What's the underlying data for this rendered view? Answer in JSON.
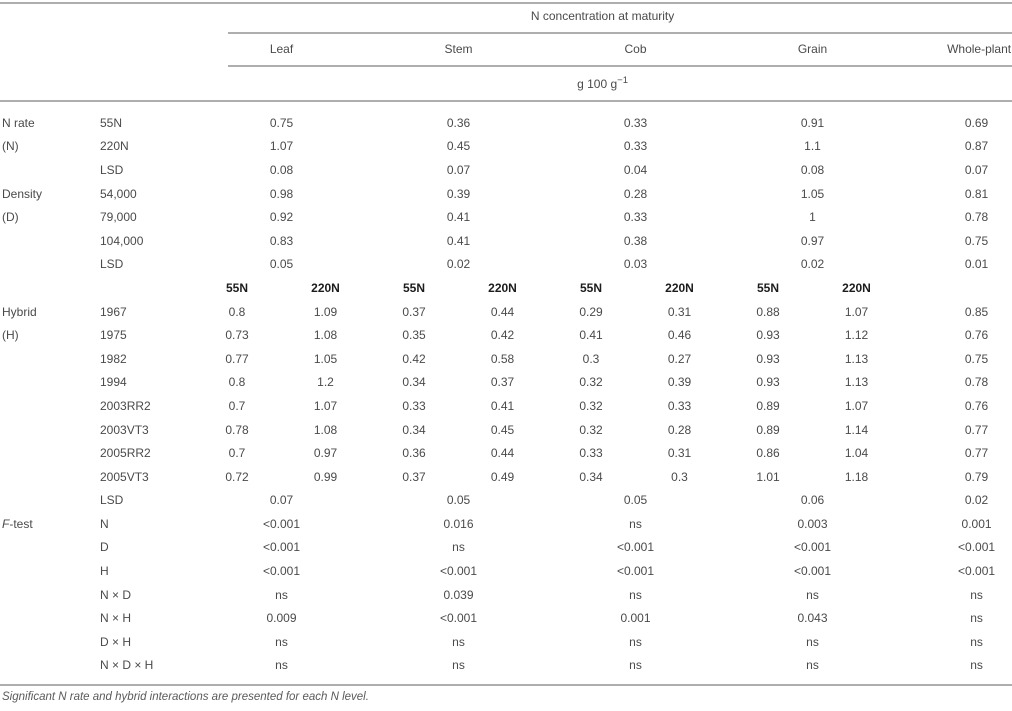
{
  "table": {
    "title": "N concentration at maturity",
    "columns": [
      "Leaf",
      "Stem",
      "Cob",
      "Grain",
      "Whole-plant"
    ],
    "unit_base": "g 100 g",
    "unit_exp": "−1",
    "nlevel_subheader": [
      "55N",
      "220N",
      "55N",
      "220N",
      "55N",
      "220N",
      "55N",
      "220N"
    ],
    "rows": [
      {
        "group": "N rate",
        "level": "55N",
        "mode": "span",
        "values": [
          "0.75",
          "0.36",
          "0.33",
          "0.91",
          "0.69"
        ]
      },
      {
        "group": "(N)",
        "level": "220N",
        "mode": "span",
        "values": [
          "1.07",
          "0.45",
          "0.33",
          "1.1",
          "0.87"
        ]
      },
      {
        "group": "",
        "level": "LSD",
        "mode": "span",
        "values": [
          "0.08",
          "0.07",
          "0.04",
          "0.08",
          "0.07"
        ]
      },
      {
        "group": "Density",
        "level": "54,000",
        "mode": "span",
        "values": [
          "0.98",
          "0.39",
          "0.28",
          "1.05",
          "0.81"
        ]
      },
      {
        "group": "(D)",
        "level": "79,000",
        "mode": "span",
        "values": [
          "0.92",
          "0.41",
          "0.33",
          "1",
          "0.78"
        ]
      },
      {
        "group": "",
        "level": "104,000",
        "mode": "span",
        "values": [
          "0.83",
          "0.41",
          "0.38",
          "0.97",
          "0.75"
        ]
      },
      {
        "group": "",
        "level": "LSD",
        "mode": "span",
        "values": [
          "0.05",
          "0.02",
          "0.03",
          "0.02",
          "0.01"
        ]
      },
      {
        "mode": "subheader"
      },
      {
        "group": "Hybrid",
        "level": "1967",
        "mode": "split",
        "values": [
          "0.8",
          "1.09",
          "0.37",
          "0.44",
          "0.29",
          "0.31",
          "0.88",
          "1.07",
          "0.85"
        ]
      },
      {
        "group": "(H)",
        "level": "1975",
        "mode": "split",
        "values": [
          "0.73",
          "1.08",
          "0.35",
          "0.42",
          "0.41",
          "0.46",
          "0.93",
          "1.12",
          "0.76"
        ]
      },
      {
        "group": "",
        "level": "1982",
        "mode": "split",
        "values": [
          "0.77",
          "1.05",
          "0.42",
          "0.58",
          "0.3",
          "0.27",
          "0.93",
          "1.13",
          "0.75"
        ]
      },
      {
        "group": "",
        "level": "1994",
        "mode": "split",
        "values": [
          "0.8",
          "1.2",
          "0.34",
          "0.37",
          "0.32",
          "0.39",
          "0.93",
          "1.13",
          "0.78"
        ]
      },
      {
        "group": "",
        "level": "2003RR2",
        "mode": "split",
        "values": [
          "0.7",
          "1.07",
          "0.33",
          "0.41",
          "0.32",
          "0.33",
          "0.89",
          "1.07",
          "0.76"
        ]
      },
      {
        "group": "",
        "level": "2003VT3",
        "mode": "split",
        "values": [
          "0.78",
          "1.08",
          "0.34",
          "0.45",
          "0.32",
          "0.28",
          "0.89",
          "1.14",
          "0.77"
        ]
      },
      {
        "group": "",
        "level": "2005RR2",
        "mode": "split",
        "values": [
          "0.7",
          "0.97",
          "0.36",
          "0.44",
          "0.33",
          "0.31",
          "0.86",
          "1.04",
          "0.77"
        ]
      },
      {
        "group": "",
        "level": "2005VT3",
        "mode": "split",
        "values": [
          "0.72",
          "0.99",
          "0.37",
          "0.49",
          "0.34",
          "0.3",
          "1.01",
          "1.18",
          "0.79"
        ]
      },
      {
        "group": "",
        "level": "LSD",
        "mode": "span",
        "values": [
          "0.07",
          "0.05",
          "0.05",
          "0.06",
          "0.02"
        ]
      },
      {
        "group": "F-test",
        "fprefix": true,
        "level": "N",
        "mode": "span",
        "values": [
          "<0.001",
          "0.016",
          "ns",
          "0.003",
          "0.001"
        ]
      },
      {
        "group": "",
        "level": "D",
        "mode": "span",
        "values": [
          "<0.001",
          "ns",
          "<0.001",
          "<0.001",
          "<0.001"
        ]
      },
      {
        "group": "",
        "level": "H",
        "mode": "span",
        "values": [
          "<0.001",
          "<0.001",
          "<0.001",
          "<0.001",
          "<0.001"
        ]
      },
      {
        "group": "",
        "level": "N × D",
        "mode": "span",
        "values": [
          "ns",
          "0.039",
          "ns",
          "ns",
          "ns"
        ]
      },
      {
        "group": "",
        "level": "N × H",
        "mode": "span",
        "values": [
          "0.009",
          "<0.001",
          "0.001",
          "0.043",
          "ns"
        ]
      },
      {
        "group": "",
        "level": "D × H",
        "mode": "span",
        "values": [
          "ns",
          "ns",
          "ns",
          "ns",
          "ns"
        ]
      },
      {
        "group": "",
        "level": "N × D × H",
        "mode": "span",
        "values": [
          "ns",
          "ns",
          "ns",
          "ns",
          "ns"
        ]
      }
    ]
  },
  "footnote": "Significant N rate and hybrid interactions are presented for each N level."
}
